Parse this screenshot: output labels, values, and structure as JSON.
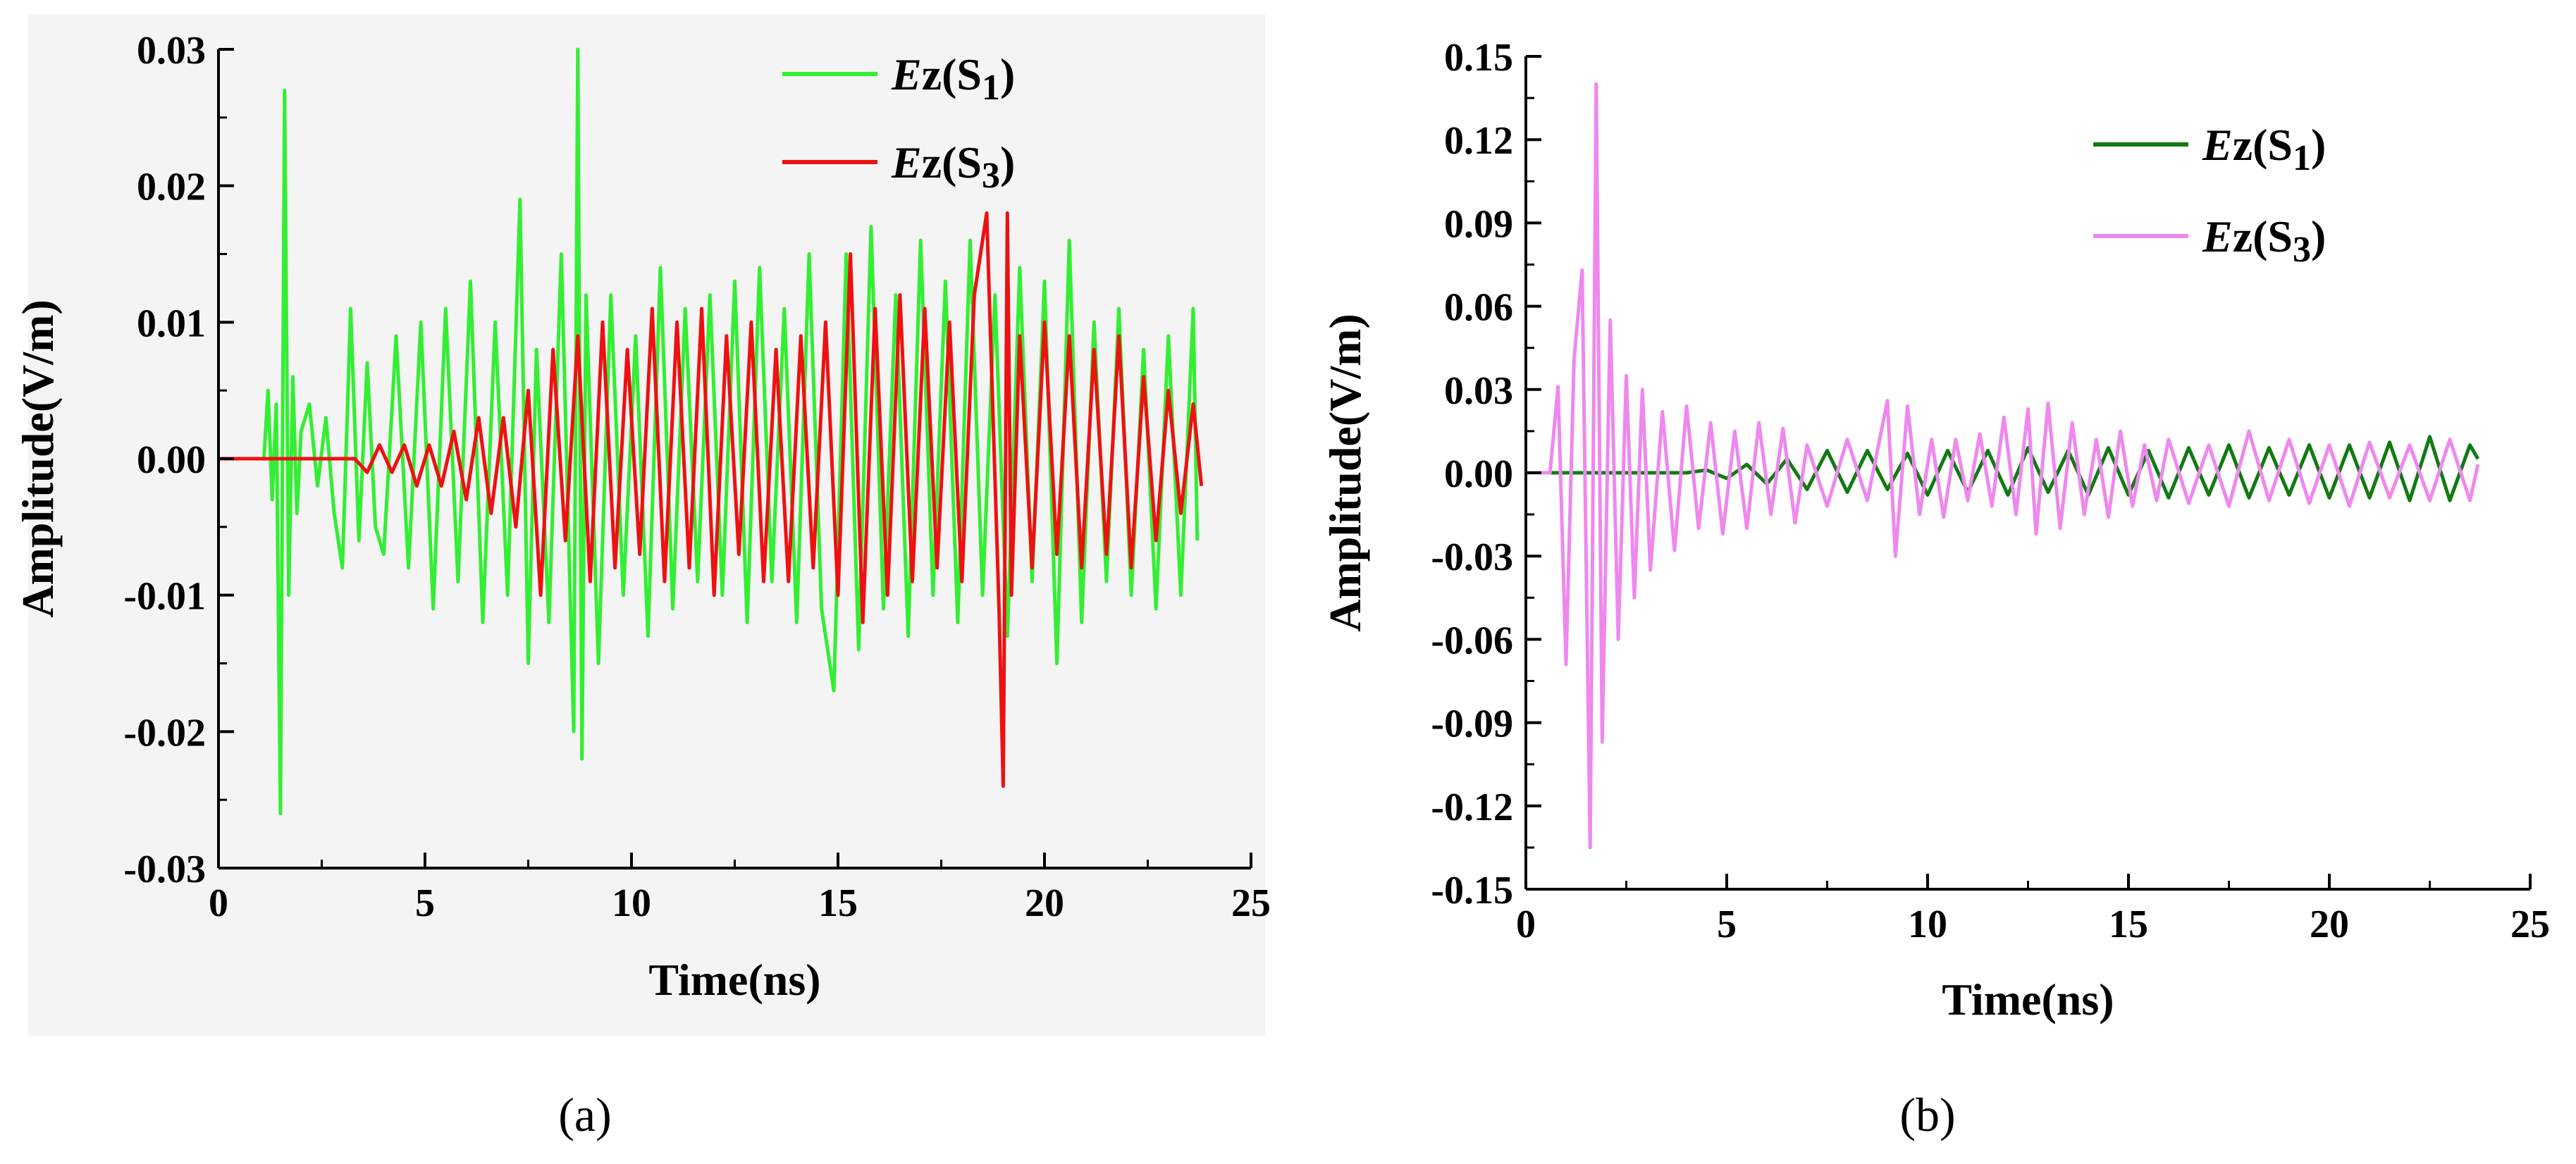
{
  "figure": {
    "panels": [
      "(a)",
      "(b)"
    ]
  },
  "chart_data": [
    {
      "type": "line",
      "panel_label": "(a)",
      "xlabel": "Time(ns)",
      "ylabel": "Amplitude(V/m)",
      "xlim": [
        0,
        25
      ],
      "ylim": [
        -0.03,
        0.03
      ],
      "x_ticks": [
        0,
        5,
        10,
        15,
        20,
        25
      ],
      "x_tick_labels": [
        "0",
        "5",
        "10",
        "15",
        "20",
        "25"
      ],
      "y_ticks": [
        -0.03,
        -0.02,
        -0.01,
        0.0,
        0.01,
        0.02,
        0.03
      ],
      "y_tick_labels": [
        "-0.03",
        "-0.02",
        "-0.01",
        "0.00",
        "0.01",
        "0.02",
        "0.03"
      ],
      "grid": false,
      "legend_position": "top-right",
      "series": [
        {
          "name_main": "Ez(S",
          "name_italic": "E",
          "name_rest": "z(S",
          "name_sub": "1",
          "name_close": ")",
          "color": "#33ee33",
          "x": [
            0,
            1.1,
            1.2,
            1.3,
            1.4,
            1.5,
            1.6,
            1.7,
            1.8,
            1.9,
            2.0,
            2.2,
            2.4,
            2.6,
            2.8,
            3.0,
            3.2,
            3.4,
            3.6,
            3.8,
            4.0,
            4.3,
            4.6,
            4.9,
            5.2,
            5.5,
            5.8,
            6.1,
            6.4,
            6.7,
            7.0,
            7.3,
            7.5,
            7.7,
            8.0,
            8.3,
            8.6,
            8.7,
            8.8,
            8.9,
            9.2,
            9.5,
            9.8,
            10.1,
            10.4,
            10.7,
            11.0,
            11.3,
            11.6,
            11.9,
            12.2,
            12.5,
            12.8,
            13.1,
            13.4,
            13.7,
            14.0,
            14.3,
            14.6,
            14.9,
            15.2,
            15.5,
            15.8,
            16.1,
            16.4,
            16.7,
            17.0,
            17.3,
            17.6,
            17.9,
            18.2,
            18.5,
            18.8,
            19.1,
            19.4,
            19.7,
            20.0,
            20.3,
            20.6,
            20.9,
            21.2,
            21.5,
            21.8,
            22.1,
            22.4,
            22.7,
            23.0,
            23.3,
            23.6,
            23.7
          ],
          "y": [
            0,
            0,
            0.005,
            -0.003,
            0.004,
            -0.026,
            0.027,
            -0.01,
            0.006,
            -0.004,
            0.002,
            0.004,
            -0.002,
            0.003,
            -0.004,
            -0.008,
            0.011,
            -0.006,
            0.007,
            -0.005,
            -0.007,
            0.009,
            -0.008,
            0.01,
            -0.011,
            0.011,
            -0.009,
            0.013,
            -0.012,
            0.01,
            -0.01,
            0.019,
            -0.015,
            0.008,
            -0.012,
            0.015,
            -0.02,
            0.03,
            -0.022,
            0.012,
            -0.015,
            0.012,
            -0.01,
            0.009,
            -0.013,
            0.014,
            -0.011,
            0.011,
            -0.009,
            0.012,
            -0.01,
            0.013,
            -0.012,
            0.014,
            -0.009,
            0.011,
            -0.012,
            0.015,
            -0.011,
            -0.017,
            0.015,
            -0.014,
            0.017,
            -0.011,
            0.012,
            -0.013,
            0.016,
            -0.01,
            0.013,
            -0.012,
            0.016,
            -0.01,
            0.012,
            -0.013,
            0.014,
            -0.009,
            0.013,
            -0.015,
            0.016,
            -0.012,
            0.01,
            -0.009,
            0.011,
            -0.01,
            0.008,
            -0.011,
            0.009,
            -0.01,
            0.011,
            -0.006
          ]
        },
        {
          "name_main": "Ez(S",
          "name_italic": "E",
          "name_rest": "z(S",
          "name_sub": "3",
          "name_close": ")",
          "color": "#ee1111",
          "x": [
            0,
            3.0,
            3.3,
            3.6,
            3.9,
            4.2,
            4.5,
            4.8,
            5.1,
            5.4,
            5.7,
            6.0,
            6.3,
            6.6,
            6.9,
            7.2,
            7.5,
            7.8,
            8.1,
            8.4,
            8.7,
            9.0,
            9.3,
            9.6,
            9.9,
            10.2,
            10.5,
            10.8,
            11.1,
            11.4,
            11.7,
            12.0,
            12.3,
            12.6,
            12.9,
            13.2,
            13.5,
            13.8,
            14.1,
            14.4,
            14.7,
            15.0,
            15.3,
            15.6,
            15.9,
            16.2,
            16.5,
            16.8,
            17.1,
            17.4,
            17.7,
            18.0,
            18.3,
            18.6,
            18.9,
            19.0,
            19.1,
            19.2,
            19.4,
            19.7,
            20.0,
            20.3,
            20.6,
            20.9,
            21.2,
            21.5,
            21.8,
            22.1,
            22.4,
            22.7,
            23.0,
            23.3,
            23.6,
            23.8
          ],
          "y": [
            0,
            0,
            0.0,
            -0.001,
            0.001,
            -0.001,
            0.001,
            -0.002,
            0.001,
            -0.002,
            0.002,
            -0.003,
            0.003,
            -0.004,
            0.003,
            -0.005,
            0.005,
            -0.01,
            0.008,
            -0.006,
            0.009,
            -0.009,
            0.01,
            -0.008,
            0.008,
            -0.007,
            0.011,
            -0.009,
            0.01,
            -0.008,
            0.011,
            -0.01,
            0.009,
            -0.007,
            0.01,
            -0.009,
            0.008,
            -0.009,
            0.009,
            -0.008,
            0.01,
            -0.01,
            0.015,
            -0.012,
            0.011,
            -0.01,
            0.012,
            -0.009,
            0.011,
            -0.008,
            0.01,
            -0.009,
            0.012,
            0.018,
            -0.011,
            -0.024,
            0.018,
            -0.01,
            0.009,
            -0.008,
            0.01,
            -0.007,
            0.009,
            -0.008,
            0.008,
            -0.007,
            0.009,
            -0.008,
            0.006,
            -0.006,
            0.005,
            -0.004,
            0.004,
            -0.002
          ]
        }
      ]
    },
    {
      "type": "line",
      "panel_label": "(b)",
      "xlabel": "Time(ns)",
      "ylabel": "Amplitude(V/m)",
      "xlim": [
        0,
        25
      ],
      "ylim": [
        -0.15,
        0.15
      ],
      "x_ticks": [
        0,
        5,
        10,
        15,
        20,
        25
      ],
      "x_tick_labels": [
        "0",
        "5",
        "10",
        "15",
        "20",
        "25"
      ],
      "y_ticks": [
        -0.15,
        -0.12,
        -0.09,
        -0.06,
        -0.03,
        0.0,
        0.03,
        0.06,
        0.09,
        0.12,
        0.15
      ],
      "y_tick_labels": [
        "-0.15",
        "-0.12",
        "-0.09",
        "-0.06",
        "-0.03",
        "0.00",
        "0.03",
        "0.06",
        "0.09",
        "0.12",
        "0.15"
      ],
      "grid": false,
      "legend_position": "top-right",
      "series": [
        {
          "name_main": "Ez(S",
          "name_italic": "E",
          "name_rest": "z(S",
          "name_sub": "1",
          "name_close": ")",
          "color": "#117a11",
          "x": [
            0,
            4.0,
            4.5,
            5.0,
            5.5,
            6.0,
            6.5,
            7.0,
            7.5,
            8.0,
            8.5,
            9.0,
            9.5,
            10.0,
            10.5,
            11.0,
            11.5,
            12.0,
            12.5,
            13.0,
            13.5,
            14.0,
            14.5,
            15.0,
            15.5,
            16.0,
            16.5,
            17.0,
            17.5,
            18.0,
            18.5,
            19.0,
            19.5,
            20.0,
            20.5,
            21.0,
            21.5,
            22.0,
            22.5,
            23.0,
            23.5,
            23.7
          ],
          "y": [
            0,
            0,
            0.001,
            -0.002,
            0.003,
            -0.004,
            0.005,
            -0.006,
            0.008,
            -0.007,
            0.008,
            -0.006,
            0.007,
            -0.008,
            0.008,
            -0.007,
            0.008,
            -0.008,
            0.009,
            -0.007,
            0.008,
            -0.008,
            0.009,
            -0.008,
            0.008,
            -0.009,
            0.009,
            -0.008,
            0.01,
            -0.009,
            0.009,
            -0.008,
            0.01,
            -0.009,
            0.01,
            -0.009,
            0.011,
            -0.01,
            0.013,
            -0.01,
            0.01,
            0.005
          ]
        },
        {
          "name_main": "Ez(S",
          "name_italic": "E",
          "name_rest": "z(S",
          "name_sub": "3",
          "name_close": ")",
          "color": "#ee88ee",
          "x": [
            0,
            0.6,
            0.8,
            1.0,
            1.2,
            1.4,
            1.6,
            1.75,
            1.9,
            2.1,
            2.3,
            2.5,
            2.7,
            2.9,
            3.1,
            3.4,
            3.7,
            4.0,
            4.3,
            4.6,
            4.9,
            5.2,
            5.5,
            5.8,
            6.1,
            6.4,
            6.7,
            7.0,
            7.5,
            8.0,
            8.5,
            9.0,
            9.2,
            9.5,
            9.8,
            10.1,
            10.4,
            10.7,
            11.0,
            11.3,
            11.6,
            11.9,
            12.2,
            12.5,
            12.7,
            13.0,
            13.3,
            13.6,
            13.9,
            14.2,
            14.5,
            14.8,
            15.1,
            15.4,
            15.7,
            16.0,
            16.5,
            17.0,
            17.5,
            18.0,
            18.5,
            19.0,
            19.5,
            20.0,
            20.5,
            21.0,
            21.5,
            22.0,
            22.5,
            23.0,
            23.5,
            23.7
          ],
          "y": [
            0,
            0,
            0.031,
            -0.069,
            0.041,
            0.073,
            -0.135,
            0.14,
            -0.097,
            0.055,
            -0.06,
            0.035,
            -0.045,
            0.03,
            -0.035,
            0.022,
            -0.028,
            0.024,
            -0.02,
            0.018,
            -0.022,
            0.015,
            -0.02,
            0.018,
            -0.015,
            0.016,
            -0.018,
            0.01,
            -0.012,
            0.012,
            -0.01,
            0.026,
            -0.03,
            0.024,
            -0.015,
            0.012,
            -0.016,
            0.012,
            -0.01,
            0.014,
            -0.012,
            0.02,
            -0.015,
            0.023,
            -0.022,
            0.025,
            -0.02,
            0.018,
            -0.015,
            0.012,
            -0.016,
            0.015,
            -0.012,
            0.01,
            -0.01,
            0.012,
            -0.011,
            0.01,
            -0.012,
            0.015,
            -0.01,
            0.012,
            -0.011,
            0.01,
            -0.012,
            0.011,
            -0.009,
            0.01,
            -0.01,
            0.012,
            -0.01,
            0.003
          ]
        }
      ]
    }
  ]
}
